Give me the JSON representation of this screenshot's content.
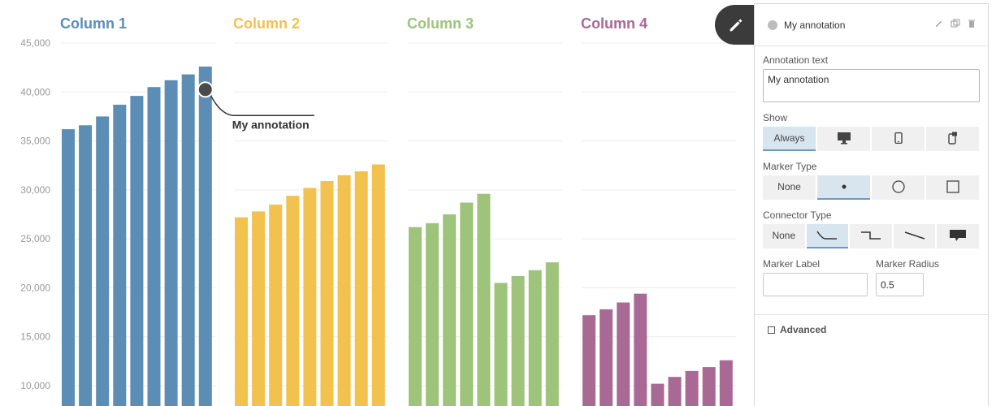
{
  "chart_data": {
    "type": "bar",
    "ylim": [
      10000,
      45000
    ],
    "y_ticks": [
      "45,000",
      "40,000",
      "35,000",
      "30,000",
      "25,000",
      "20,000",
      "15,000",
      "10,000"
    ],
    "y_tick_values": [
      45000,
      40000,
      35000,
      30000,
      25000,
      20000,
      15000,
      10000
    ],
    "grid": true,
    "series": [
      {
        "name": "Column 1",
        "color": "#5b8db5",
        "values": [
          36200,
          36600,
          37500,
          38700,
          39600,
          40500,
          41200,
          41800,
          42600
        ]
      },
      {
        "name": "Column 2",
        "color": "#f2c14e",
        "values": [
          27200,
          27800,
          28500,
          29400,
          30200,
          30900,
          31500,
          31900,
          32600
        ]
      },
      {
        "name": "Column 3",
        "color": "#9ec37a",
        "values": [
          26200,
          26600,
          27500,
          28700,
          29600,
          20500,
          21200,
          21800,
          22600
        ]
      },
      {
        "name": "Column 4",
        "color": "#a86a94",
        "values": [
          17200,
          17800,
          18500,
          19400,
          10200,
          10900,
          11500,
          11900,
          12600
        ]
      }
    ],
    "annotation": {
      "text": "My annotation",
      "series": 0,
      "point_index": 8,
      "value": 40000
    }
  },
  "panel": {
    "title": "My annotation",
    "annotation_text_label": "Annotation text",
    "annotation_text_value": "My annotation",
    "show_label": "Show",
    "show_options": [
      "Always",
      "desktop-icon",
      "mobile-icon",
      "tablet-icon"
    ],
    "show_selected": 0,
    "marker_type_label": "Marker Type",
    "marker_type_options": [
      "None",
      "dot-icon",
      "circle-icon",
      "square-icon"
    ],
    "marker_type_selected": 1,
    "connector_type_label": "Connector Type",
    "connector_type_options": [
      "None",
      "elbow-curve-icon",
      "step-icon",
      "straight-line-icon",
      "callout-icon"
    ],
    "connector_type_selected": 1,
    "marker_label_label": "Marker Label",
    "marker_label_value": "",
    "marker_radius_label": "Marker Radius",
    "marker_radius_value": "0.5",
    "advanced_label": "Advanced",
    "icons": [
      "pencil-icon",
      "duplicate-icon",
      "trash-icon"
    ]
  }
}
